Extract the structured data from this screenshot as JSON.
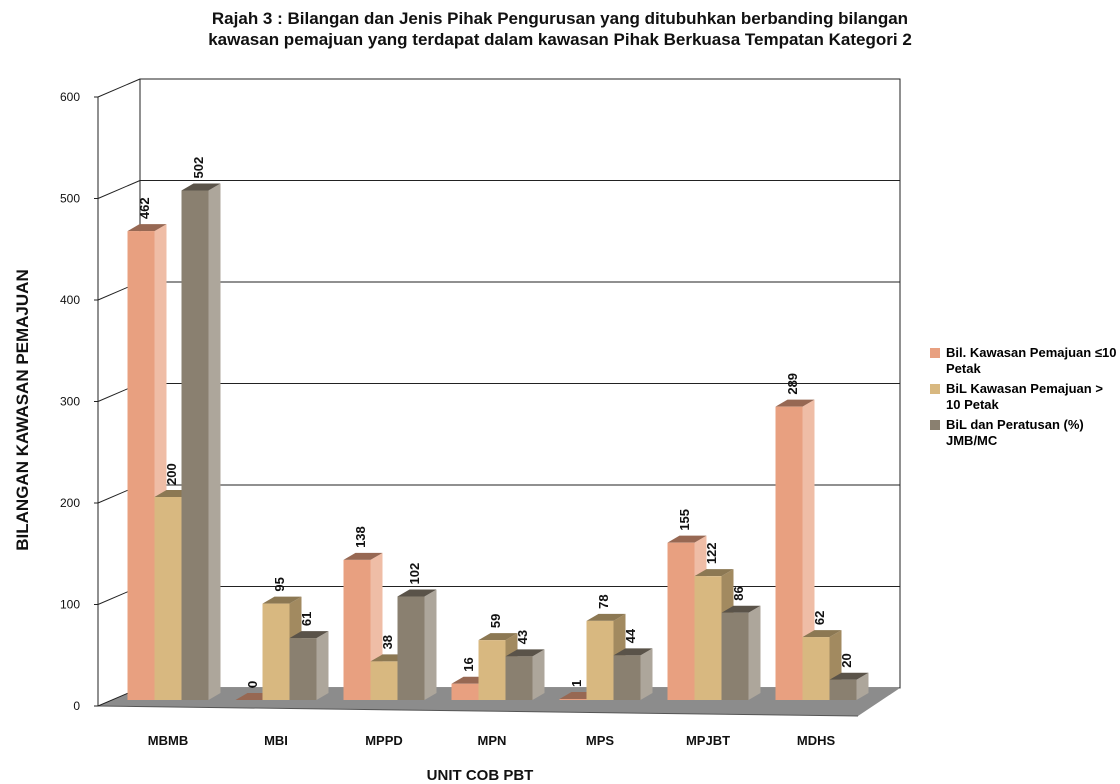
{
  "chart_data": {
    "type": "bar3d",
    "title": "Rajah 3 : Bilangan dan Jenis Pihak Pengurusan yang ditubuhkan berbanding bilangan kawasan pemajuan yang terdapat dalam kawasan Pihak Berkuasa Tempatan Kategori 2",
    "x_label": "UNIT COB PBT",
    "y_label": "BILANGAN KAWASAN PEMAJUAN",
    "categories": [
      "MBMB",
      "MBI",
      "MPPD",
      "MPN",
      "MPS",
      "MPJBT",
      "MDHS"
    ],
    "series": [
      {
        "name": "Bil. Kawasan Pemajuan ≤10 Petak",
        "color": "#e8a080",
        "values": [
          462,
          0,
          138,
          16,
          1,
          155,
          289
        ]
      },
      {
        "name": "BiL Kawasan Pemajuan > 10 Petak",
        "color": "#d8b880",
        "values": [
          200,
          95,
          38,
          59,
          78,
          122,
          62
        ]
      },
      {
        "name": "BiL dan Peratusan (%) JMB/MC",
        "color": "#8a8070",
        "values": [
          502,
          61,
          102,
          43,
          44,
          86,
          20
        ]
      }
    ],
    "ylim": [
      0,
      600
    ],
    "yticks": [
      0,
      100,
      200,
      300,
      400,
      500,
      600
    ],
    "grid": true
  }
}
